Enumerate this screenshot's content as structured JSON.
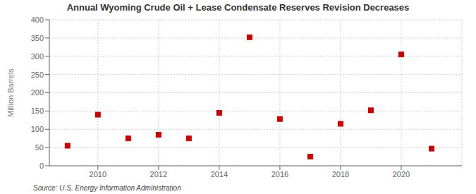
{
  "chart_data": {
    "type": "scatter",
    "title": "Annual Wyoming Crude Oil + Lease Condensate Reserves Revision Decreases",
    "y_label": "Million Barrels",
    "annotations": [
      "Source: U.S. Energy Information Administration"
    ],
    "x": [
      2009,
      2010,
      2011,
      2012,
      2013,
      2014,
      2015,
      2016,
      2017,
      2018,
      2019,
      2020,
      2021
    ],
    "values": [
      55,
      140,
      75,
      85,
      75,
      145,
      352,
      128,
      25,
      115,
      152,
      305,
      47
    ],
    "color": "#cc0000",
    "marker": "square",
    "xlim": [
      2008.4,
      2022.0
    ],
    "xticks": [
      2010,
      2012,
      2014,
      2016,
      2018,
      2020
    ],
    "ylim": [
      0,
      400
    ],
    "yticks": [
      0,
      50,
      100,
      150,
      200,
      250,
      300,
      350,
      400
    ],
    "grid": true
  }
}
